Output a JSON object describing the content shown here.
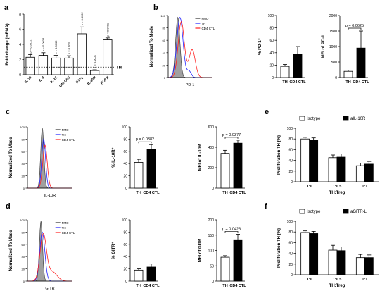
{
  "panel_letters": [
    "a",
    "b",
    "c",
    "d",
    "e",
    "f"
  ],
  "colors": {
    "fmo": "#333333",
    "th": "#2222ff",
    "cd4": "#ff2222"
  },
  "chart_data": [
    {
      "id": "a",
      "type": "bar",
      "ylabel": "Fold change (mRNA)",
      "ylim": [
        0,
        8
      ],
      "yticks": [
        "0",
        "2",
        "4",
        "6",
        "8"
      ],
      "categories": [
        "IL-10",
        "IL-6",
        "IL-22",
        "GM-CSF",
        "IFN-γ",
        "IL-10R",
        "HOPX"
      ],
      "values": [
        2.3,
        2.55,
        2.2,
        2.2,
        5.4,
        0.55,
        4.6
      ],
      "errors": [
        0.35,
        0.35,
        0.35,
        0.3,
        0.9,
        0.1,
        0.25
      ],
      "pvalues": [
        "p = 0.0012",
        "p = 0.0034",
        "p = 0.0005",
        "p = 0.003",
        "p = 0.0002",
        "p = 0.0001",
        "p < 0.0001"
      ],
      "reference_line": {
        "y": 1,
        "label": "TH"
      }
    },
    {
      "id": "b",
      "type": "histogram",
      "xlabel": "PD-1",
      "ylabel": "Normalized To Mode",
      "ylim": [
        0,
        100
      ],
      "yticks": [
        "0",
        "20",
        "40",
        "60",
        "80",
        "100"
      ],
      "legend": [
        "FMO",
        "TH",
        "CD4 CTL"
      ],
      "series": [
        {
          "name": "FMO",
          "peak": 0.22,
          "width": 0.07,
          "height": 97
        },
        {
          "name": "TH",
          "peak": 0.27,
          "width": 0.1,
          "height": 97,
          "shoulder": {
            "pos": 0.48,
            "w": 0.07,
            "h": 10
          }
        },
        {
          "name": "CD4 CTL",
          "peak": 0.3,
          "width": 0.1,
          "height": 90,
          "shoulder": {
            "pos": 0.55,
            "w": 0.1,
            "h": 45
          }
        }
      ]
    },
    {
      "id": "b2",
      "type": "bar",
      "ylabel": "% PD-1⁺",
      "ylim": [
        0,
        100
      ],
      "yticks": [
        "0",
        "20",
        "40",
        "60",
        "80",
        "100"
      ],
      "categories": [
        "TH",
        "CD4 CTL"
      ],
      "values": [
        18,
        38
      ],
      "errors": [
        3,
        12
      ],
      "fills": [
        "white",
        "black"
      ]
    },
    {
      "id": "b3",
      "type": "bar",
      "ylabel": "MFI of PD-1",
      "ylim": [
        0,
        2000
      ],
      "yticks": [
        "0",
        "500",
        "1000",
        "1500",
        "2000"
      ],
      "categories": [
        "TH",
        "CD4 CTL"
      ],
      "values": [
        200,
        950
      ],
      "errors": [
        40,
        550
      ],
      "fills": [
        "white",
        "black"
      ],
      "pvalue": "p = 0.0625"
    },
    {
      "id": "c",
      "type": "histogram",
      "xlabel": "IL-10R",
      "ylabel": "Normalized To Mode",
      "ylim": [
        0,
        100
      ],
      "yticks": [
        "0",
        "20",
        "40",
        "60",
        "80",
        "100"
      ],
      "legend": [
        "FMO",
        "TH",
        "CD4 CTL"
      ],
      "series": [
        {
          "name": "FMO",
          "peak": 0.33,
          "width": 0.05,
          "height": 98
        },
        {
          "name": "TH",
          "peak": 0.36,
          "width": 0.06,
          "height": 80
        },
        {
          "name": "CD4 CTL",
          "peak": 0.39,
          "width": 0.07,
          "height": 70
        }
      ]
    },
    {
      "id": "c2",
      "type": "bar",
      "ylabel": "% IL-10R⁺",
      "ylim": [
        0,
        100
      ],
      "yticks": [
        "0",
        "20",
        "40",
        "60",
        "80",
        "100"
      ],
      "categories": [
        "TH",
        "CD4 CTL"
      ],
      "values": [
        42,
        63
      ],
      "errors": [
        5,
        8
      ],
      "fills": [
        "white",
        "black"
      ],
      "pvalue": "p = 0.0382"
    },
    {
      "id": "c3",
      "type": "bar",
      "ylabel": "MFI of IL-10R",
      "ylim": [
        0,
        600
      ],
      "yticks": [
        "0",
        "200",
        "400",
        "600"
      ],
      "categories": [
        "TH",
        "CD4 CTL"
      ],
      "values": [
        340,
        440
      ],
      "errors": [
        30,
        30
      ],
      "fills": [
        "white",
        "black"
      ],
      "pvalue": "p = 0.0377"
    },
    {
      "id": "d",
      "type": "histogram",
      "xlabel": "GITR",
      "ylabel": "Normalized To Mode",
      "ylim": [
        0,
        100
      ],
      "yticks": [
        "0",
        "20",
        "40",
        "60",
        "80",
        "100"
      ],
      "legend": [
        "FMO",
        "TH",
        "CD4 CTL"
      ],
      "series": [
        {
          "name": "FMO",
          "peak": 0.3,
          "width": 0.05,
          "height": 98
        },
        {
          "name": "TH",
          "peak": 0.33,
          "width": 0.08,
          "height": 80
        },
        {
          "name": "CD4 CTL",
          "peak": 0.35,
          "width": 0.1,
          "height": 75,
          "shoulder": {
            "pos": 0.55,
            "w": 0.15,
            "h": 15
          }
        }
      ]
    },
    {
      "id": "d2",
      "type": "bar",
      "ylabel": "% GITR⁺",
      "ylim": [
        0,
        100
      ],
      "yticks": [
        "0",
        "20",
        "40",
        "60",
        "80",
        "100"
      ],
      "categories": [
        "TH",
        "CD4 CTL"
      ],
      "values": [
        18,
        23
      ],
      "errors": [
        2,
        5
      ],
      "fills": [
        "white",
        "black"
      ]
    },
    {
      "id": "d3",
      "type": "bar",
      "ylabel": "MFI of GITR",
      "ylim": [
        0,
        200
      ],
      "yticks": [
        "0",
        "50",
        "100",
        "150",
        "200"
      ],
      "categories": [
        "TH",
        "CD4 CTL"
      ],
      "values": [
        78,
        135
      ],
      "errors": [
        5,
        18
      ],
      "fills": [
        "white",
        "black"
      ],
      "pvalue": "p = 0.0428"
    },
    {
      "id": "e",
      "type": "bar",
      "ylabel": "Proliferation TH (%)",
      "xlabel": "TH:Treg",
      "ylim": [
        0,
        100
      ],
      "yticks": [
        "0",
        "20",
        "40",
        "60",
        "80",
        "100"
      ],
      "categories": [
        "1:0",
        "1:0.5",
        "1:1"
      ],
      "series": [
        {
          "name": "Isotype",
          "values": [
            80,
            45,
            30
          ],
          "errors": [
            3,
            5,
            5
          ],
          "fill": "white"
        },
        {
          "name": "aIL-10R",
          "values": [
            78,
            46,
            33
          ],
          "errors": [
            4,
            6,
            5
          ],
          "fill": "black"
        }
      ]
    },
    {
      "id": "f",
      "type": "bar",
      "ylabel": "Proliferation TH (%)",
      "xlabel": "TH:Treg",
      "ylim": [
        0,
        100
      ],
      "yticks": [
        "0",
        "20",
        "40",
        "60",
        "80",
        "100"
      ],
      "categories": [
        "1:0",
        "1:0.5",
        "1:1"
      ],
      "series": [
        {
          "name": "Isotype",
          "values": [
            79,
            46,
            32
          ],
          "errors": [
            3,
            9,
            6
          ],
          "fill": "white"
        },
        {
          "name": "aGITR-L",
          "values": [
            77,
            45,
            32
          ],
          "errors": [
            4,
            7,
            5
          ],
          "fill": "black"
        }
      ]
    }
  ]
}
